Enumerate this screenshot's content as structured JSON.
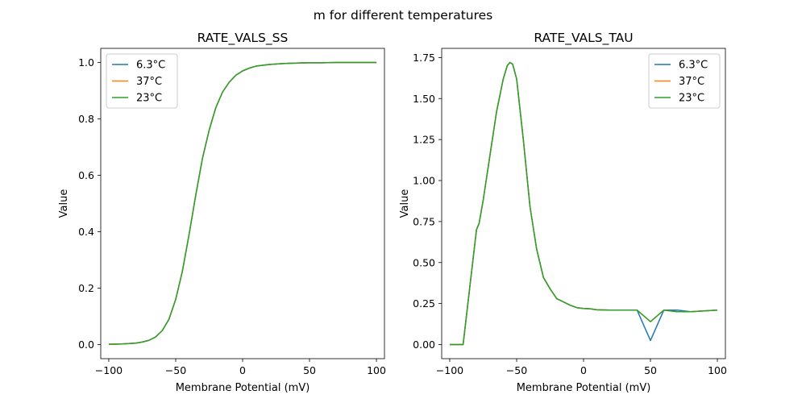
{
  "figure": {
    "suptitle": "m for different temperatures"
  },
  "colors": {
    "series": [
      "#1f77b4",
      "#ff7f0e",
      "#2ca02c"
    ],
    "legend_frame": "#cccccc",
    "axes": "#000000"
  },
  "chart_data": [
    {
      "type": "line",
      "title": "RATE_VALS_SS",
      "xlabel": "Membrane Potential (mV)",
      "ylabel": "Value",
      "xlim": [
        -106,
        106
      ],
      "ylim": [
        -0.05,
        1.05
      ],
      "xticks": [
        -100,
        -50,
        0,
        50,
        100
      ],
      "xtick_labels": [
        "−100",
        "−50",
        "0",
        "50",
        "100"
      ],
      "yticks": [
        0.0,
        0.2,
        0.4,
        0.6,
        0.8,
        1.0
      ],
      "ytick_labels": [
        "0.0",
        "0.2",
        "0.4",
        "0.6",
        "0.8",
        "1.0"
      ],
      "legend_position": "upper left",
      "x": [
        -100,
        -90,
        -80,
        -75,
        -70,
        -65,
        -60,
        -55,
        -50,
        -45,
        -40,
        -35,
        -30,
        -25,
        -20,
        -15,
        -10,
        -5,
        0,
        5,
        10,
        20,
        30,
        40,
        50,
        60,
        70,
        80,
        90,
        100
      ],
      "series": [
        {
          "name": "6.3°C",
          "values": [
            0.001,
            0.002,
            0.005,
            0.009,
            0.015,
            0.027,
            0.05,
            0.09,
            0.16,
            0.26,
            0.39,
            0.53,
            0.66,
            0.76,
            0.84,
            0.895,
            0.93,
            0.955,
            0.97,
            0.98,
            0.987,
            0.993,
            0.996,
            0.998,
            0.999,
            0.999,
            1.0,
            1.0,
            1.0,
            1.0
          ]
        },
        {
          "name": "37°C",
          "values": [
            0.001,
            0.002,
            0.005,
            0.009,
            0.015,
            0.027,
            0.05,
            0.09,
            0.16,
            0.26,
            0.39,
            0.53,
            0.66,
            0.76,
            0.84,
            0.895,
            0.93,
            0.955,
            0.97,
            0.98,
            0.987,
            0.993,
            0.996,
            0.998,
            0.999,
            0.999,
            1.0,
            1.0,
            1.0,
            1.0
          ]
        },
        {
          "name": "23°C",
          "values": [
            0.001,
            0.002,
            0.005,
            0.009,
            0.015,
            0.027,
            0.05,
            0.09,
            0.16,
            0.26,
            0.39,
            0.53,
            0.66,
            0.76,
            0.84,
            0.895,
            0.93,
            0.955,
            0.97,
            0.98,
            0.987,
            0.993,
            0.996,
            0.998,
            0.999,
            0.999,
            1.0,
            1.0,
            1.0,
            1.0
          ]
        }
      ]
    },
    {
      "type": "line",
      "title": "RATE_VALS_TAU",
      "xlabel": "Membrane Potential (mV)",
      "ylabel": "Value",
      "xlim": [
        -106,
        106
      ],
      "ylim": [
        -0.086,
        1.806
      ],
      "xticks": [
        -100,
        -50,
        0,
        50,
        100
      ],
      "xtick_labels": [
        "−100",
        "−50",
        "0",
        "50",
        "100"
      ],
      "yticks": [
        0.0,
        0.25,
        0.5,
        0.75,
        1.0,
        1.25,
        1.5,
        1.75
      ],
      "ytick_labels": [
        "0.00",
        "0.25",
        "0.50",
        "0.75",
        "1.00",
        "1.25",
        "1.50",
        "1.75"
      ],
      "legend_position": "upper right",
      "x": [
        -100,
        -90,
        -80,
        -78,
        -75,
        -70,
        -65,
        -60,
        -57,
        -55,
        -53,
        -50,
        -45,
        -40,
        -35,
        -30,
        -25,
        -20,
        -15,
        -10,
        -5,
        0,
        5,
        10,
        20,
        30,
        40,
        50,
        60,
        70,
        80,
        90,
        100
      ],
      "series": [
        {
          "name": "6.3°C",
          "values": [
            0.0,
            0.0,
            0.7,
            0.74,
            0.88,
            1.15,
            1.42,
            1.62,
            1.7,
            1.72,
            1.71,
            1.62,
            1.25,
            0.84,
            0.58,
            0.41,
            0.34,
            0.28,
            0.26,
            0.24,
            0.225,
            0.22,
            0.218,
            0.212,
            0.21,
            0.21,
            0.21,
            0.025,
            0.21,
            0.21,
            0.2,
            0.205,
            0.21
          ]
        },
        {
          "name": "37°C",
          "values": [
            0.0,
            0.0,
            0.7,
            0.74,
            0.88,
            1.15,
            1.42,
            1.62,
            1.7,
            1.72,
            1.71,
            1.62,
            1.25,
            0.84,
            0.58,
            0.41,
            0.34,
            0.28,
            0.26,
            0.24,
            0.225,
            0.22,
            0.218,
            0.212,
            0.21,
            0.21,
            0.21,
            0.14,
            0.21,
            0.2,
            0.2,
            0.205,
            0.21
          ]
        },
        {
          "name": "23°C",
          "values": [
            0.0,
            0.0,
            0.7,
            0.74,
            0.88,
            1.15,
            1.42,
            1.62,
            1.7,
            1.72,
            1.71,
            1.62,
            1.25,
            0.84,
            0.58,
            0.41,
            0.34,
            0.28,
            0.26,
            0.24,
            0.225,
            0.22,
            0.218,
            0.212,
            0.21,
            0.21,
            0.21,
            0.14,
            0.21,
            0.2,
            0.2,
            0.205,
            0.21
          ]
        }
      ]
    }
  ]
}
